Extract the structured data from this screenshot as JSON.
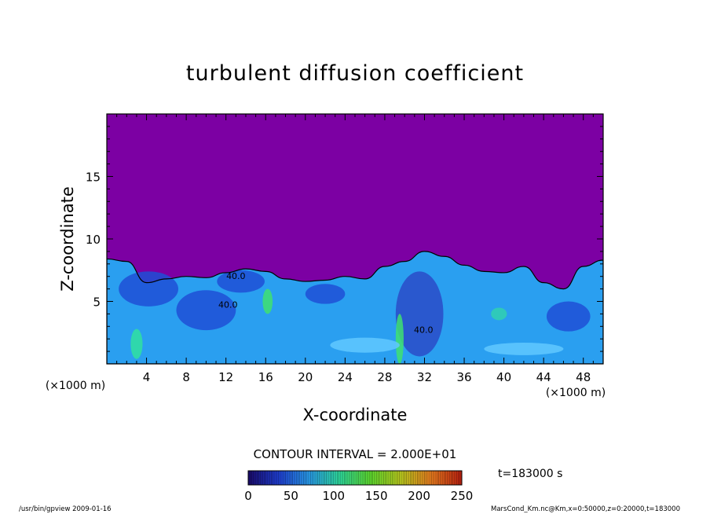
{
  "chart_data": {
    "type": "heatmap",
    "title": "turbulent diffusion coefficient",
    "xlabel": "X-coordinate",
    "ylabel": "Z-coordinate",
    "x_units": "(×1000 m)",
    "y_units": "(×1000 m)",
    "xlim": [
      0,
      50
    ],
    "ylim": [
      0,
      20
    ],
    "x_ticks": [
      4,
      8,
      12,
      16,
      20,
      24,
      28,
      32,
      36,
      40,
      44,
      48
    ],
    "y_ticks": [
      5,
      10,
      15
    ],
    "contour_interval_label": "CONTOUR INTERVAL = 2.000E+01",
    "contour_labels": [
      {
        "text": "40.0",
        "x": 12.2,
        "z": 4.5
      },
      {
        "text": "40.0",
        "x": 13.0,
        "z": 6.8
      },
      {
        "text": "40.0",
        "x": 31.9,
        "z": 2.5
      }
    ],
    "colorbar": {
      "min": 0,
      "max": 250,
      "ticks": [
        0,
        50,
        100,
        150,
        200,
        250
      ],
      "colors": [
        "#1a0a6e",
        "#2040d8",
        "#2aa0f0",
        "#30e0a0",
        "#60e030",
        "#c0d020",
        "#f08020",
        "#c02010"
      ]
    },
    "background_color": "#7c00a3",
    "time_label": "t=183000 s",
    "footer_left": "/usr/bin/gpview   2009-01-16",
    "footer_right": "MarsCond_Km.nc@Km,x=0:50000,z=0:20000,t=183000",
    "turbulent_layer_top_km": [
      [
        0,
        8.4
      ],
      [
        2,
        8.2
      ],
      [
        4,
        6.5
      ],
      [
        6,
        6.8
      ],
      [
        8,
        7.0
      ],
      [
        10,
        6.9
      ],
      [
        12,
        7.3
      ],
      [
        14,
        7.6
      ],
      [
        16,
        7.4
      ],
      [
        18,
        6.8
      ],
      [
        20,
        6.6
      ],
      [
        22,
        6.7
      ],
      [
        24,
        7.0
      ],
      [
        26,
        6.8
      ],
      [
        28,
        7.8
      ],
      [
        30,
        8.2
      ],
      [
        32,
        9.0
      ],
      [
        34,
        8.6
      ],
      [
        36,
        7.9
      ],
      [
        38,
        7.4
      ],
      [
        40,
        7.3
      ],
      [
        42,
        7.8
      ],
      [
        44,
        6.5
      ],
      [
        46,
        6.0
      ],
      [
        48,
        7.8
      ],
      [
        50,
        8.3
      ]
    ]
  }
}
